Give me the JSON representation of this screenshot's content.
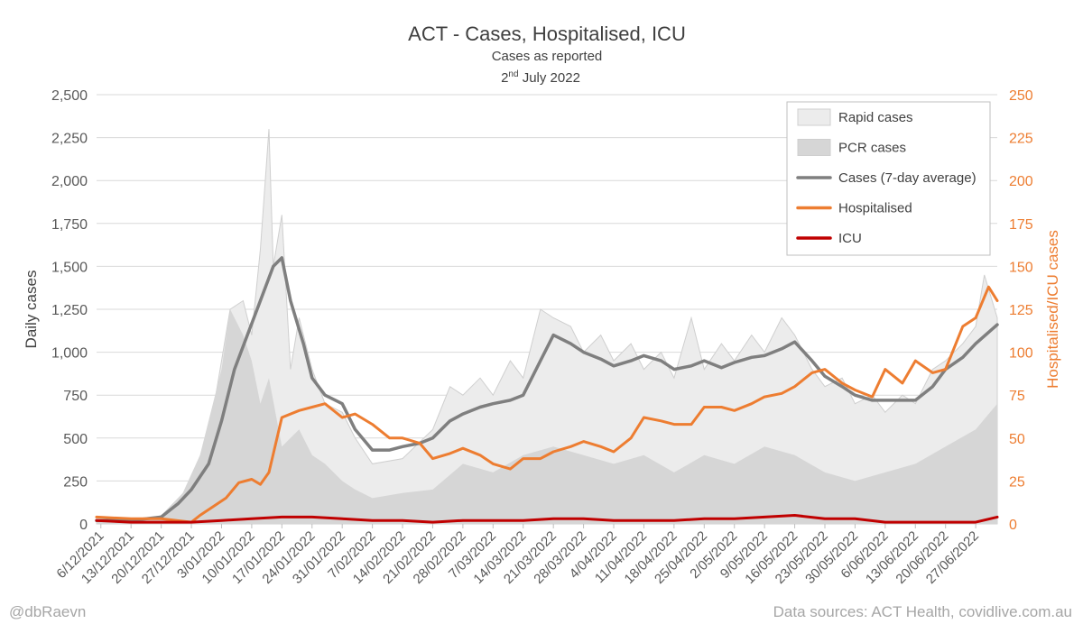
{
  "title": "ACT - Cases, Hospitalised, ICU",
  "subtitle": "Cases as reported",
  "date_main": "2",
  "date_sup": "nd",
  "date_rest": " July 2022",
  "credit_left": "@dbRaevn",
  "credit_right": "Data sources: ACT Health, covidlive.com.au",
  "colors": {
    "rapid": "#ececec",
    "rapid_stroke": "#cfcfcf",
    "pcr": "#d6d6d6",
    "avg": "#7f7f7f",
    "hosp": "#ed7d31",
    "icu": "#c00000",
    "grid": "#d9d9d9",
    "axis_text": "#595959",
    "right_axis_text": "#ed7d31"
  },
  "chart_data": {
    "type": "area",
    "xlabel": "",
    "ylabel": "Daily cases",
    "y2label": "Hospitalised/ICU cases",
    "ylim": [
      0,
      2500
    ],
    "y2lim": [
      0,
      250
    ],
    "yticks": [
      "0",
      "250",
      "500",
      "750",
      "1,000",
      "1,250",
      "1,500",
      "1,750",
      "2,000",
      "2,250",
      "2,500"
    ],
    "y2ticks": [
      "0",
      "25",
      "50",
      "75",
      "100",
      "125",
      "150",
      "175",
      "200",
      "225",
      "250"
    ],
    "grid": "horizontal",
    "legend_position": "top-right",
    "x_tick_labels": [
      "6/12/2021",
      "13/12/2021",
      "20/12/2021",
      "27/12/2021",
      "3/01/2022",
      "10/01/2022",
      "17/01/2022",
      "24/01/2022",
      "31/01/2022",
      "7/02/2022",
      "14/02/2022",
      "21/02/2022",
      "28/02/2022",
      "7/03/2022",
      "14/03/2022",
      "21/03/2022",
      "28/03/2022",
      "4/04/2022",
      "11/04/2022",
      "18/04/2022",
      "25/04/2022",
      "2/05/2022",
      "9/05/2022",
      "16/05/2022",
      "23/05/2022",
      "30/05/2022",
      "6/06/2022",
      "13/06/2022",
      "20/06/2022",
      "27/06/2022"
    ],
    "x_range": [
      "5/12/2021",
      "2/07/2022"
    ],
    "series": [
      {
        "name": "Rapid cases",
        "kind": "area",
        "axis": "left",
        "points": [
          [
            "5/12/2021",
            20
          ],
          [
            "13/12/2021",
            15
          ],
          [
            "20/12/2021",
            40
          ],
          [
            "25/12/2021",
            150
          ],
          [
            "29/12/2021",
            350
          ],
          [
            "1/01/2022",
            650
          ],
          [
            "3/01/2022",
            950
          ],
          [
            "5/01/2022",
            1250
          ],
          [
            "8/01/2022",
            1300
          ],
          [
            "10/01/2022",
            1100
          ],
          [
            "12/01/2022",
            1600
          ],
          [
            "14/01/2022",
            2300
          ],
          [
            "15/01/2022",
            1500
          ],
          [
            "17/01/2022",
            1800
          ],
          [
            "19/01/2022",
            900
          ],
          [
            "21/01/2022",
            1200
          ],
          [
            "24/01/2022",
            900
          ],
          [
            "27/01/2022",
            700
          ],
          [
            "31/01/2022",
            650
          ],
          [
            "3/02/2022",
            500
          ],
          [
            "7/02/2022",
            350
          ],
          [
            "14/02/2022",
            380
          ],
          [
            "21/02/2022",
            550
          ],
          [
            "25/02/2022",
            800
          ],
          [
            "28/02/2022",
            750
          ],
          [
            "4/03/2022",
            850
          ],
          [
            "7/03/2022",
            750
          ],
          [
            "11/03/2022",
            950
          ],
          [
            "14/03/2022",
            850
          ],
          [
            "18/03/2022",
            1250
          ],
          [
            "21/03/2022",
            1200
          ],
          [
            "25/03/2022",
            1150
          ],
          [
            "28/03/2022",
            1000
          ],
          [
            "1/04/2022",
            1100
          ],
          [
            "4/04/2022",
            950
          ],
          [
            "8/04/2022",
            1050
          ],
          [
            "11/04/2022",
            900
          ],
          [
            "15/04/2022",
            1000
          ],
          [
            "18/04/2022",
            850
          ],
          [
            "22/04/2022",
            1200
          ],
          [
            "25/04/2022",
            900
          ],
          [
            "29/04/2022",
            1050
          ],
          [
            "2/05/2022",
            950
          ],
          [
            "6/05/2022",
            1100
          ],
          [
            "9/05/2022",
            1000
          ],
          [
            "13/05/2022",
            1200
          ],
          [
            "16/05/2022",
            1100
          ],
          [
            "20/05/2022",
            900
          ],
          [
            "23/05/2022",
            800
          ],
          [
            "27/05/2022",
            850
          ],
          [
            "30/05/2022",
            700
          ],
          [
            "3/06/2022",
            750
          ],
          [
            "6/06/2022",
            650
          ],
          [
            "10/06/2022",
            750
          ],
          [
            "13/06/2022",
            700
          ],
          [
            "17/06/2022",
            900
          ],
          [
            "20/06/2022",
            950
          ],
          [
            "24/06/2022",
            1050
          ],
          [
            "27/06/2022",
            1150
          ],
          [
            "29/06/2022",
            1450
          ],
          [
            "2/07/2022",
            1200
          ]
        ]
      },
      {
        "name": "PCR cases",
        "kind": "area",
        "axis": "left",
        "points": [
          [
            "5/12/2021",
            25
          ],
          [
            "13/12/2021",
            20
          ],
          [
            "20/12/2021",
            50
          ],
          [
            "25/12/2021",
            180
          ],
          [
            "29/12/2021",
            400
          ],
          [
            "1/01/2022",
            700
          ],
          [
            "3/01/2022",
            900
          ],
          [
            "5/01/2022",
            1250
          ],
          [
            "8/01/2022",
            1100
          ],
          [
            "10/01/2022",
            950
          ],
          [
            "12/01/2022",
            700
          ],
          [
            "14/01/2022",
            850
          ],
          [
            "17/01/2022",
            450
          ],
          [
            "21/01/2022",
            550
          ],
          [
            "24/01/2022",
            400
          ],
          [
            "27/01/2022",
            350
          ],
          [
            "31/01/2022",
            250
          ],
          [
            "3/02/2022",
            200
          ],
          [
            "7/02/2022",
            150
          ],
          [
            "14/02/2022",
            180
          ],
          [
            "21/02/2022",
            200
          ],
          [
            "28/02/2022",
            350
          ],
          [
            "7/03/2022",
            300
          ],
          [
            "14/03/2022",
            400
          ],
          [
            "21/03/2022",
            450
          ],
          [
            "28/03/2022",
            400
          ],
          [
            "4/04/2022",
            350
          ],
          [
            "11/04/2022",
            400
          ],
          [
            "18/04/2022",
            300
          ],
          [
            "25/04/2022",
            400
          ],
          [
            "2/05/2022",
            350
          ],
          [
            "9/05/2022",
            450
          ],
          [
            "16/05/2022",
            400
          ],
          [
            "23/05/2022",
            300
          ],
          [
            "30/05/2022",
            250
          ],
          [
            "6/06/2022",
            300
          ],
          [
            "13/06/2022",
            350
          ],
          [
            "20/06/2022",
            450
          ],
          [
            "27/06/2022",
            550
          ],
          [
            "2/07/2022",
            700
          ]
        ]
      },
      {
        "name": "Cases (7-day average)",
        "kind": "line",
        "axis": "left",
        "points": [
          [
            "5/12/2021",
            20
          ],
          [
            "13/12/2021",
            20
          ],
          [
            "20/12/2021",
            40
          ],
          [
            "24/12/2021",
            120
          ],
          [
            "27/12/2021",
            200
          ],
          [
            "31/12/2021",
            350
          ],
          [
            "3/01/2022",
            600
          ],
          [
            "6/01/2022",
            900
          ],
          [
            "9/01/2022",
            1100
          ],
          [
            "12/01/2022",
            1300
          ],
          [
            "15/01/2022",
            1500
          ],
          [
            "17/01/2022",
            1550
          ],
          [
            "19/01/2022",
            1300
          ],
          [
            "22/01/2022",
            1050
          ],
          [
            "24/01/2022",
            850
          ],
          [
            "27/01/2022",
            750
          ],
          [
            "31/01/2022",
            700
          ],
          [
            "3/02/2022",
            550
          ],
          [
            "7/02/2022",
            430
          ],
          [
            "11/02/2022",
            430
          ],
          [
            "14/02/2022",
            450
          ],
          [
            "18/02/2022",
            470
          ],
          [
            "21/02/2022",
            500
          ],
          [
            "25/02/2022",
            600
          ],
          [
            "28/02/2022",
            640
          ],
          [
            "4/03/2022",
            680
          ],
          [
            "7/03/2022",
            700
          ],
          [
            "11/03/2022",
            720
          ],
          [
            "14/03/2022",
            750
          ],
          [
            "18/03/2022",
            950
          ],
          [
            "21/03/2022",
            1100
          ],
          [
            "25/03/2022",
            1050
          ],
          [
            "28/03/2022",
            1000
          ],
          [
            "1/04/2022",
            960
          ],
          [
            "4/04/2022",
            920
          ],
          [
            "8/04/2022",
            950
          ],
          [
            "11/04/2022",
            980
          ],
          [
            "15/04/2022",
            950
          ],
          [
            "18/04/2022",
            900
          ],
          [
            "22/04/2022",
            920
          ],
          [
            "25/04/2022",
            950
          ],
          [
            "29/04/2022",
            910
          ],
          [
            "2/05/2022",
            940
          ],
          [
            "6/05/2022",
            970
          ],
          [
            "9/05/2022",
            980
          ],
          [
            "13/05/2022",
            1020
          ],
          [
            "16/05/2022",
            1060
          ],
          [
            "20/05/2022",
            950
          ],
          [
            "23/05/2022",
            860
          ],
          [
            "27/05/2022",
            800
          ],
          [
            "30/05/2022",
            750
          ],
          [
            "3/06/2022",
            720
          ],
          [
            "6/06/2022",
            720
          ],
          [
            "10/06/2022",
            720
          ],
          [
            "13/06/2022",
            720
          ],
          [
            "17/06/2022",
            800
          ],
          [
            "20/06/2022",
            900
          ],
          [
            "24/06/2022",
            970
          ],
          [
            "27/06/2022",
            1050
          ],
          [
            "2/07/2022",
            1160
          ]
        ]
      },
      {
        "name": "Hospitalised",
        "kind": "line",
        "axis": "right",
        "points": [
          [
            "5/12/2021",
            4
          ],
          [
            "13/12/2021",
            3
          ],
          [
            "20/12/2021",
            3
          ],
          [
            "27/12/2021",
            1
          ],
          [
            "29/12/2021",
            5
          ],
          [
            "1/01/2022",
            10
          ],
          [
            "4/01/2022",
            15
          ],
          [
            "7/01/2022",
            24
          ],
          [
            "10/01/2022",
            26
          ],
          [
            "12/01/2022",
            23
          ],
          [
            "14/01/2022",
            30
          ],
          [
            "17/01/2022",
            62
          ],
          [
            "21/01/2022",
            66
          ],
          [
            "24/01/2022",
            68
          ],
          [
            "27/01/2022",
            70
          ],
          [
            "31/01/2022",
            62
          ],
          [
            "3/02/2022",
            64
          ],
          [
            "7/02/2022",
            58
          ],
          [
            "11/02/2022",
            50
          ],
          [
            "14/02/2022",
            50
          ],
          [
            "18/02/2022",
            47
          ],
          [
            "21/02/2022",
            38
          ],
          [
            "25/02/2022",
            41
          ],
          [
            "28/02/2022",
            44
          ],
          [
            "4/03/2022",
            40
          ],
          [
            "7/03/2022",
            35
          ],
          [
            "11/03/2022",
            32
          ],
          [
            "14/03/2022",
            38
          ],
          [
            "18/03/2022",
            38
          ],
          [
            "21/03/2022",
            42
          ],
          [
            "25/03/2022",
            45
          ],
          [
            "28/03/2022",
            48
          ],
          [
            "1/04/2022",
            45
          ],
          [
            "4/04/2022",
            42
          ],
          [
            "8/04/2022",
            50
          ],
          [
            "11/04/2022",
            62
          ],
          [
            "15/04/2022",
            60
          ],
          [
            "18/04/2022",
            58
          ],
          [
            "22/04/2022",
            58
          ],
          [
            "25/04/2022",
            68
          ],
          [
            "29/04/2022",
            68
          ],
          [
            "2/05/2022",
            66
          ],
          [
            "6/05/2022",
            70
          ],
          [
            "9/05/2022",
            74
          ],
          [
            "13/05/2022",
            76
          ],
          [
            "16/05/2022",
            80
          ],
          [
            "20/05/2022",
            88
          ],
          [
            "23/05/2022",
            90
          ],
          [
            "27/05/2022",
            82
          ],
          [
            "30/05/2022",
            78
          ],
          [
            "3/06/2022",
            74
          ],
          [
            "6/06/2022",
            90
          ],
          [
            "10/06/2022",
            82
          ],
          [
            "13/06/2022",
            95
          ],
          [
            "17/06/2022",
            88
          ],
          [
            "20/06/2022",
            90
          ],
          [
            "24/06/2022",
            115
          ],
          [
            "27/06/2022",
            120
          ],
          [
            "30/06/2022",
            138
          ],
          [
            "2/07/2022",
            130
          ]
        ]
      },
      {
        "name": "ICU",
        "kind": "line",
        "axis": "right",
        "points": [
          [
            "5/12/2021",
            2
          ],
          [
            "13/12/2021",
            1
          ],
          [
            "20/12/2021",
            1
          ],
          [
            "27/12/2021",
            1
          ],
          [
            "3/01/2022",
            2
          ],
          [
            "10/01/2022",
            3
          ],
          [
            "17/01/2022",
            4
          ],
          [
            "24/01/2022",
            4
          ],
          [
            "31/01/2022",
            3
          ],
          [
            "7/02/2022",
            2
          ],
          [
            "14/02/2022",
            2
          ],
          [
            "21/02/2022",
            1
          ],
          [
            "28/02/2022",
            2
          ],
          [
            "7/03/2022",
            2
          ],
          [
            "14/03/2022",
            2
          ],
          [
            "21/03/2022",
            3
          ],
          [
            "28/03/2022",
            3
          ],
          [
            "4/04/2022",
            2
          ],
          [
            "11/04/2022",
            2
          ],
          [
            "18/04/2022",
            2
          ],
          [
            "25/04/2022",
            3
          ],
          [
            "2/05/2022",
            3
          ],
          [
            "9/05/2022",
            4
          ],
          [
            "16/05/2022",
            5
          ],
          [
            "23/05/2022",
            3
          ],
          [
            "30/05/2022",
            3
          ],
          [
            "6/06/2022",
            1
          ],
          [
            "13/06/2022",
            1
          ],
          [
            "20/06/2022",
            1
          ],
          [
            "27/06/2022",
            1
          ],
          [
            "2/07/2022",
            4
          ]
        ]
      }
    ]
  }
}
